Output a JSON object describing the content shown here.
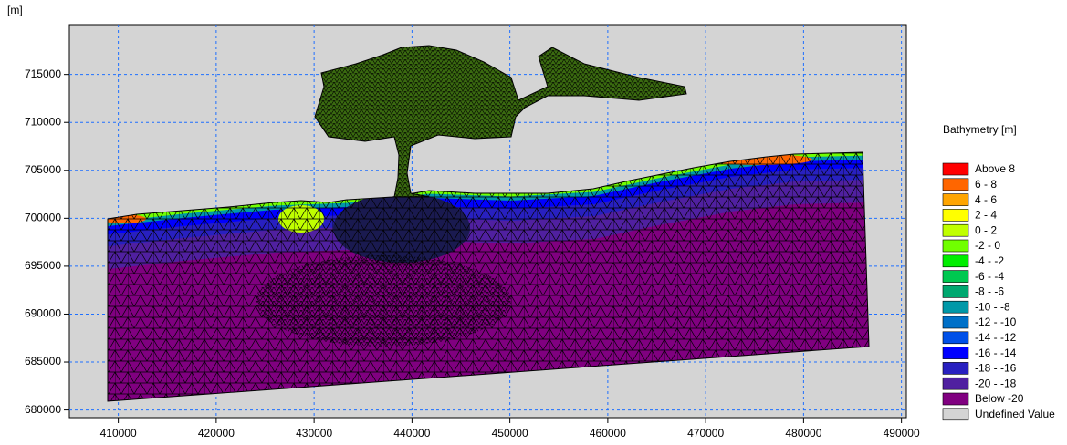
{
  "chart_data": {
    "type": "mesh",
    "y_label": "[m]",
    "xlim": [
      405000,
      490500
    ],
    "ylim": [
      679200,
      720200
    ],
    "xticks": [
      410000,
      420000,
      430000,
      440000,
      450000,
      460000,
      470000,
      480000,
      490000
    ],
    "yticks": [
      680000,
      685000,
      690000,
      695000,
      700000,
      705000,
      710000,
      715000
    ],
    "grid": true,
    "legend_title": "Bathymetry [m]",
    "legend": [
      {
        "label": "Above 8",
        "color": "#ff0000"
      },
      {
        "label": "6 - 8",
        "color": "#ff6600"
      },
      {
        "label": "4 - 6",
        "color": "#ffa500"
      },
      {
        "label": "2 - 4",
        "color": "#ffff00"
      },
      {
        "label": "0 - 2",
        "color": "#c0ff00"
      },
      {
        "label": "-2 - 0",
        "color": "#70ff00"
      },
      {
        "label": "-4 - -2",
        "color": "#00ee00"
      },
      {
        "label": "-6 - -4",
        "color": "#00c850"
      },
      {
        "label": "-8 - -6",
        "color": "#00a870"
      },
      {
        "label": "-10 - -8",
        "color": "#0098a8"
      },
      {
        "label": "-12 - -10",
        "color": "#0070c8"
      },
      {
        "label": "-14 - -12",
        "color": "#0050e8"
      },
      {
        "label": "-16 - -14",
        "color": "#0000ff"
      },
      {
        "label": "-18 - -16",
        "color": "#2820c0"
      },
      {
        "label": "-20 - -18",
        "color": "#5020a0"
      },
      {
        "label": "Below -20",
        "color": "#800080"
      },
      {
        "label": "Undefined Value",
        "color": "#d4d4d4"
      }
    ]
  }
}
